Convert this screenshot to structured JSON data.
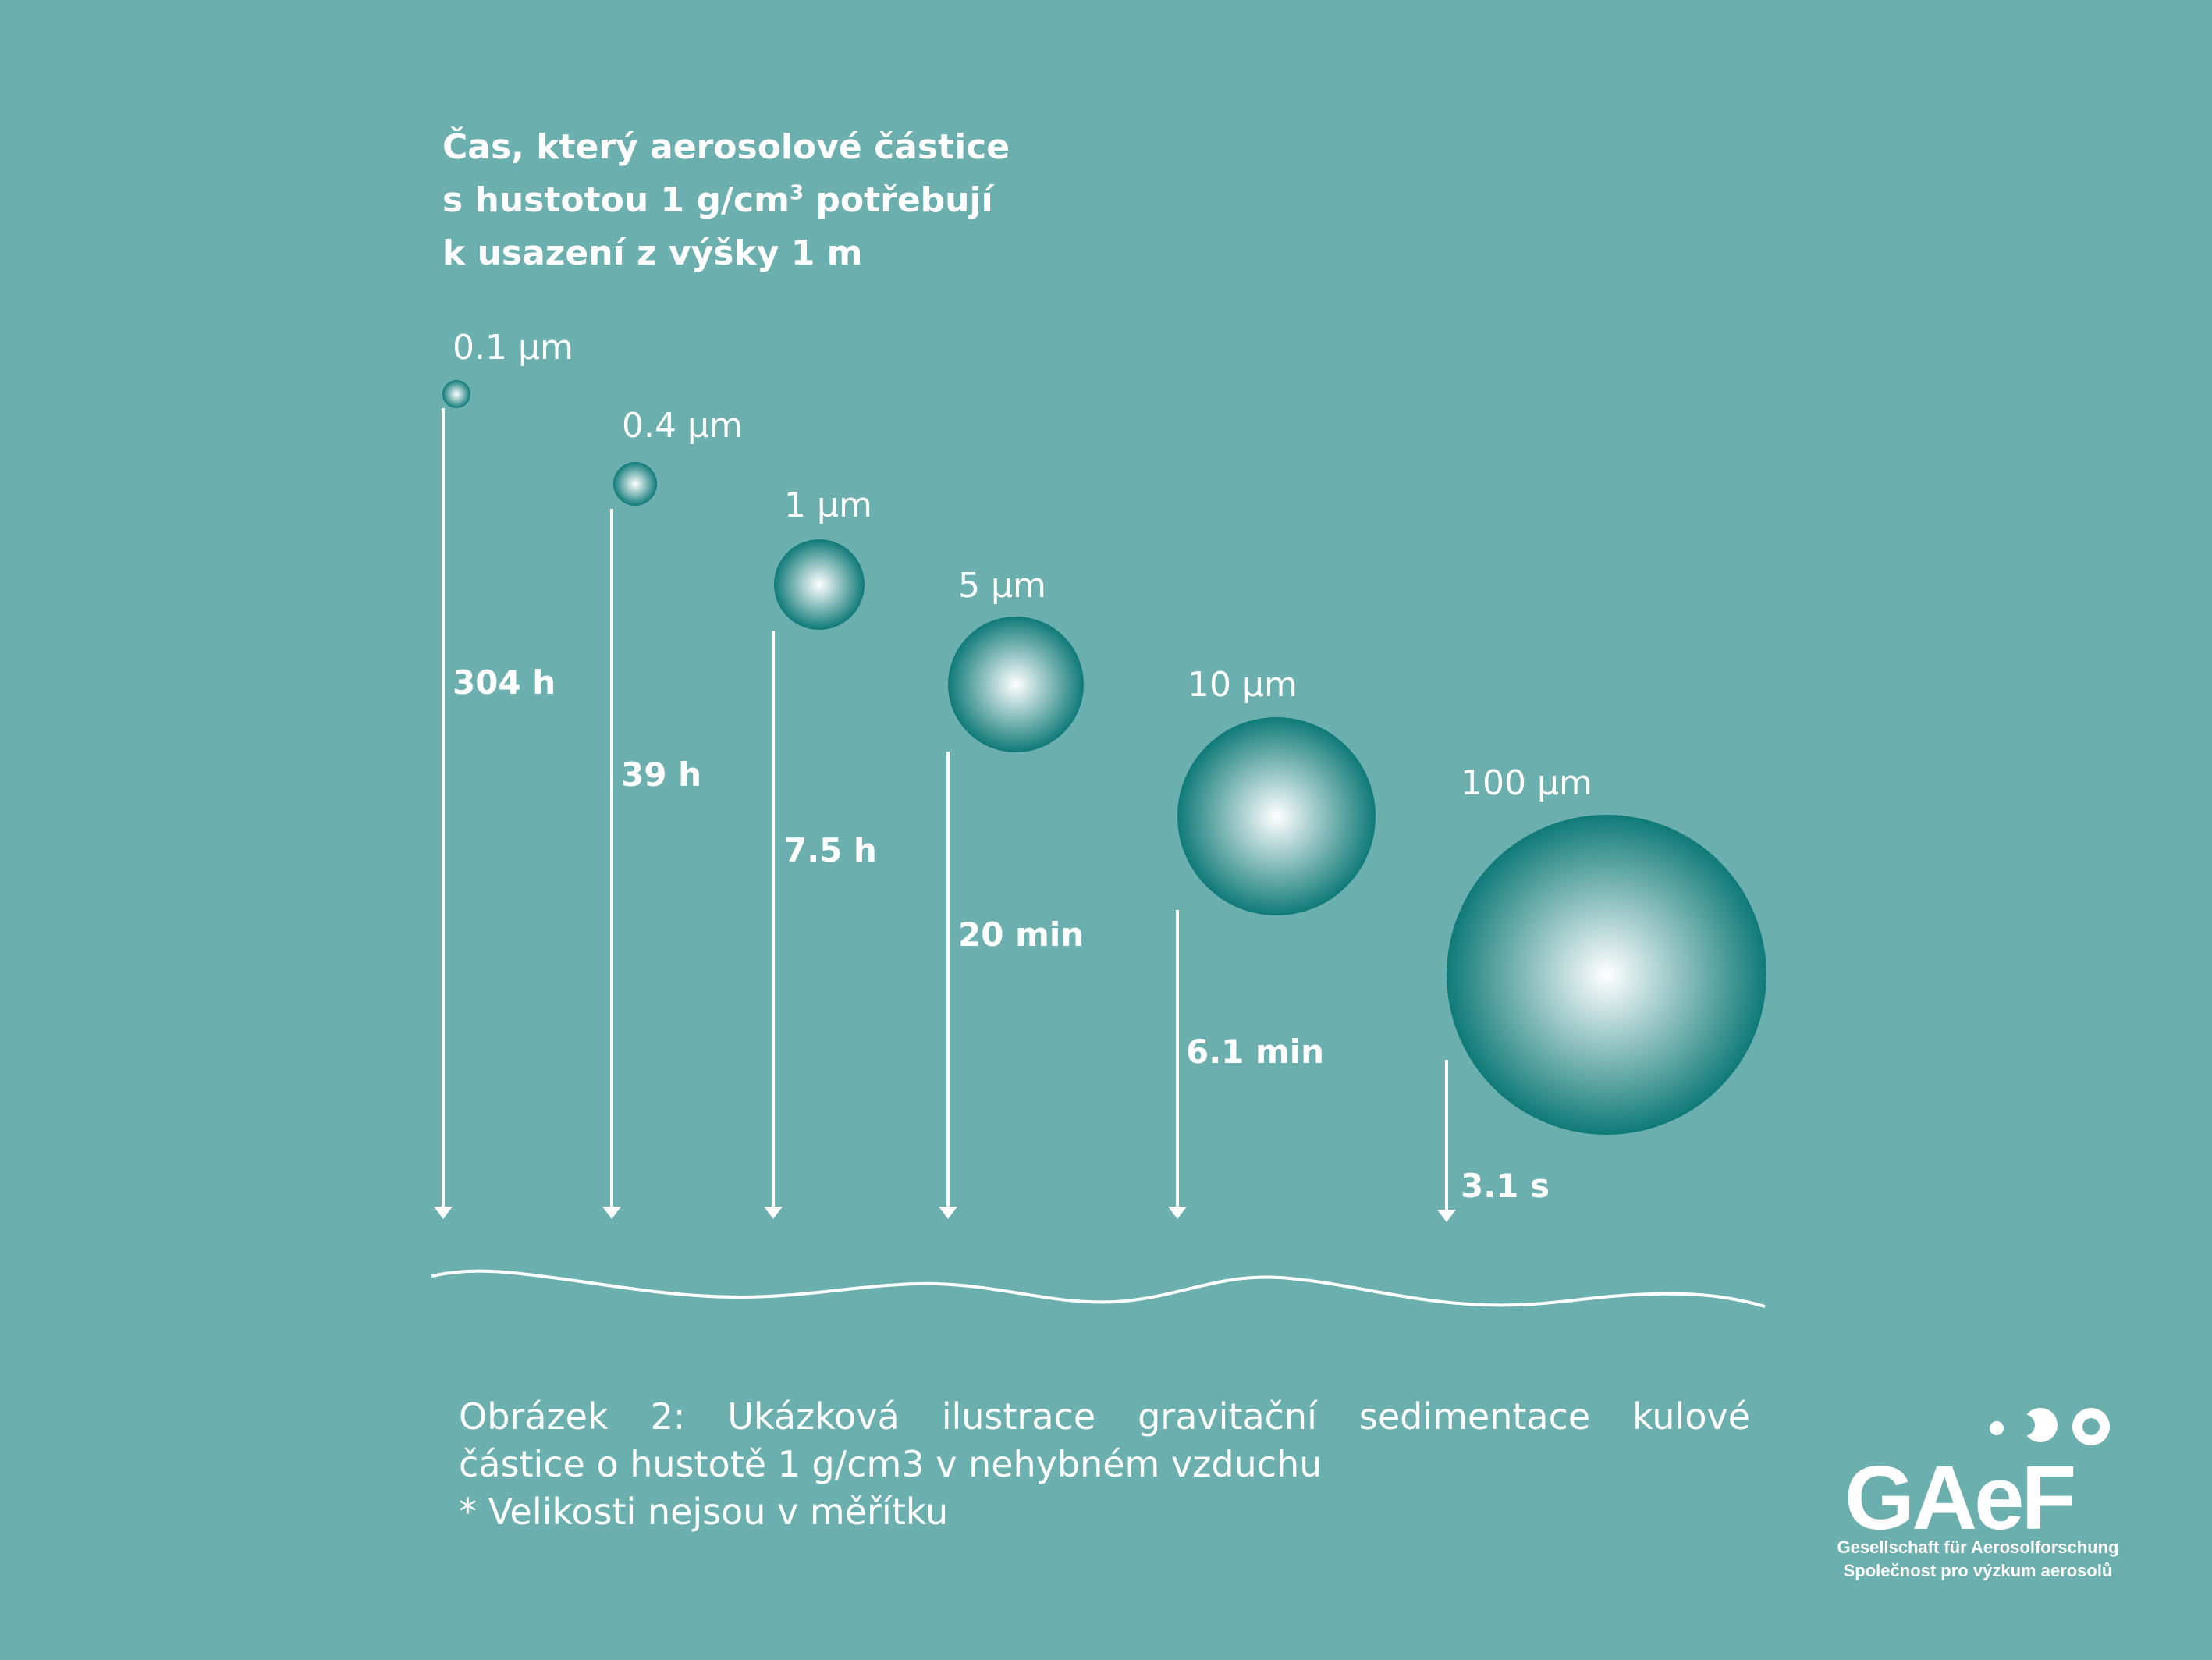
{
  "title": {
    "line1": "Čas, který aerosolové částice",
    "line2_pre": "s hustotou 1 g/cm",
    "line2_sup": "3",
    "line2_post": " potřebují",
    "line3": "k usazení z výšky 1 m"
  },
  "particles": [
    {
      "size": "0.1 µm",
      "time": "304 h"
    },
    {
      "size": "0.4 µm",
      "time": "39 h"
    },
    {
      "size": "1 µm",
      "time": "7.5 h"
    },
    {
      "size": "5 µm",
      "time": "20 min"
    },
    {
      "size": "10 µm",
      "time": "6.1 min"
    },
    {
      "size": "100 µm",
      "time": "3.1 s"
    }
  ],
  "caption": {
    "line1": "Obrázek 2: Ukázková ilustrace gravitační sedimentace kulové",
    "line2": "částice o hustotě 1 g/cm3 v nehybném vzduchu",
    "line3": "* Velikosti nejsou v měřítku"
  },
  "logo": {
    "name": "GAeF",
    "subtitle_de": "Gesellschaft für Aerosolforschung",
    "subtitle_cz": "Společnost pro výzkum aerosolů"
  },
  "colors": {
    "background": "#6bafaf",
    "sphere_core": "#ffffff",
    "sphere_edge": "#0f7a78",
    "foreground": "#ffffff"
  }
}
